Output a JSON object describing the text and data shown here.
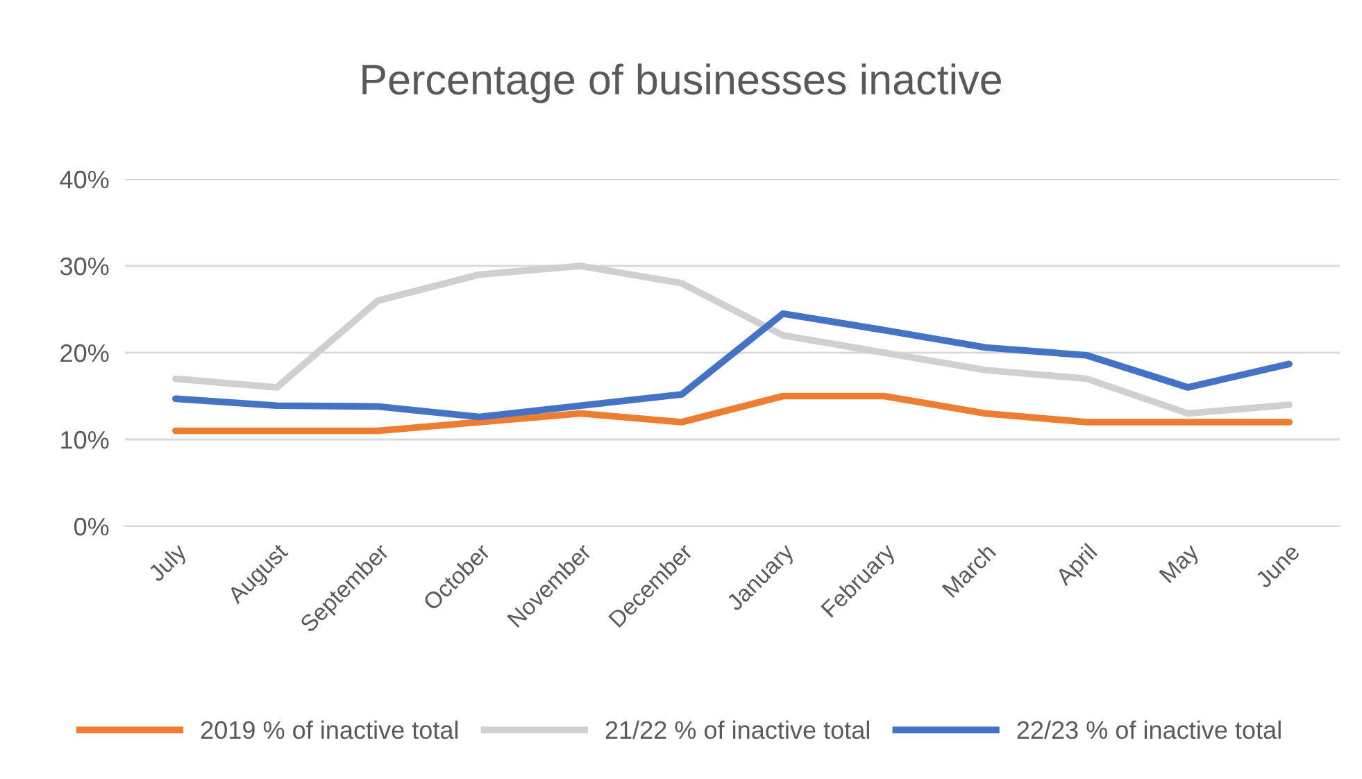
{
  "chart_data": {
    "type": "line",
    "title": "Percentage of businesses inactive",
    "categories": [
      "July",
      "August",
      "September",
      "October",
      "November",
      "December",
      "January",
      "February",
      "March",
      "April",
      "May",
      "June"
    ],
    "series": [
      {
        "name": "2019 % of inactive total",
        "color": "#ed7d31",
        "values": [
          11,
          11,
          11,
          12,
          13,
          12,
          15,
          15,
          13,
          12,
          12,
          12
        ]
      },
      {
        "name": "21/22 % of inactive total",
        "color": "#d0d0d0",
        "values": [
          17,
          16,
          26,
          29,
          30,
          28,
          22,
          20,
          18,
          17,
          13,
          14
        ]
      },
      {
        "name": "22/23 % of inactive total",
        "color": "#4472c4",
        "values": [
          14.7,
          13.9,
          13.8,
          12.6,
          13.9,
          15.2,
          24.5,
          22.6,
          20.6,
          19.7,
          16,
          18.7
        ]
      }
    ],
    "ylim": [
      0,
      40
    ],
    "yticks": [
      {
        "value": 0,
        "label": "0%"
      },
      {
        "value": 10,
        "label": "10%"
      },
      {
        "value": 20,
        "label": "20%"
      },
      {
        "value": 30,
        "label": "30%"
      },
      {
        "value": 40,
        "label": "40%"
      }
    ],
    "grid": "y",
    "legend": "bottom",
    "marker": "none",
    "line_style": "solid"
  }
}
